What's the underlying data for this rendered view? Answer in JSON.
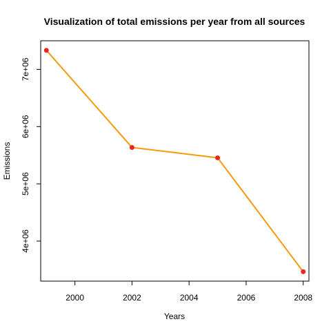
{
  "chart_data": {
    "type": "line",
    "title": "Visualization of total emissions per year from all sources",
    "xlabel": "Years",
    "ylabel": "Emissions",
    "x": [
      1999,
      2002,
      2005,
      2008
    ],
    "series": [
      {
        "values": [
          7332967,
          5635780,
          5454703,
          3464206
        ],
        "line_color": "#f59a0a",
        "point_color": "#e8281e"
      }
    ],
    "xlim": [
      1998.8,
      2008.2
    ],
    "ylim": [
      3300000,
      7500000
    ],
    "x_ticks": [
      2000,
      2002,
      2004,
      2006,
      2008
    ],
    "x_tick_labels": [
      "2000",
      "2002",
      "2004",
      "2006",
      "2008"
    ],
    "y_ticks": [
      4000000,
      5000000,
      6000000,
      7000000
    ],
    "y_tick_labels": [
      "4e+06",
      "5e+06",
      "6e+06",
      "7e+06"
    ],
    "grid": false,
    "legend": "none"
  }
}
